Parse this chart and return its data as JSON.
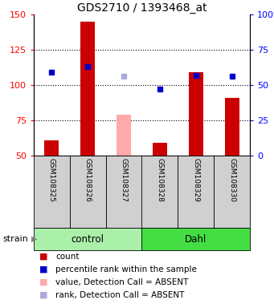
{
  "title": "GDS2710 / 1393468_at",
  "samples": [
    "GSM108325",
    "GSM108326",
    "GSM108327",
    "GSM108328",
    "GSM108329",
    "GSM108330"
  ],
  "count_values": [
    61,
    145,
    null,
    59,
    109,
    91
  ],
  "count_absent": [
    null,
    null,
    79,
    null,
    null,
    null
  ],
  "rank_values": [
    109,
    113,
    null,
    97,
    107,
    106
  ],
  "rank_absent": [
    null,
    null,
    106,
    null,
    null,
    null
  ],
  "ylim_left": [
    50,
    150
  ],
  "ylim_right": [
    0,
    100
  ],
  "yticks_left": [
    50,
    75,
    100,
    125,
    150
  ],
  "yticks_right": [
    0,
    25,
    50,
    75,
    100
  ],
  "ytick_labels_right": [
    "0",
    "25",
    "50",
    "75",
    "100%"
  ],
  "color_count": "#cc0000",
  "color_count_absent": "#ffaaaa",
  "color_rank": "#0000cc",
  "color_rank_absent": "#aaaadd",
  "bar_width": 0.4,
  "group_spans": [
    {
      "start": 0,
      "end": 2,
      "name": "control",
      "color": "#aaf0aa"
    },
    {
      "start": 3,
      "end": 5,
      "name": "Dahl",
      "color": "#44dd44"
    }
  ],
  "legend_items": [
    {
      "color": "#cc0000",
      "label": "count"
    },
    {
      "color": "#0000cc",
      "label": "percentile rank within the sample"
    },
    {
      "color": "#ffaaaa",
      "label": "value, Detection Call = ABSENT"
    },
    {
      "color": "#aaaadd",
      "label": "rank, Detection Call = ABSENT"
    }
  ],
  "strain_label": "strain",
  "marker_size": 5,
  "title_fontsize": 10,
  "tick_fontsize": 8,
  "label_fontsize": 7.5,
  "sample_fontsize": 6.5,
  "group_fontsize": 8.5,
  "legend_fontsize": 7.5
}
